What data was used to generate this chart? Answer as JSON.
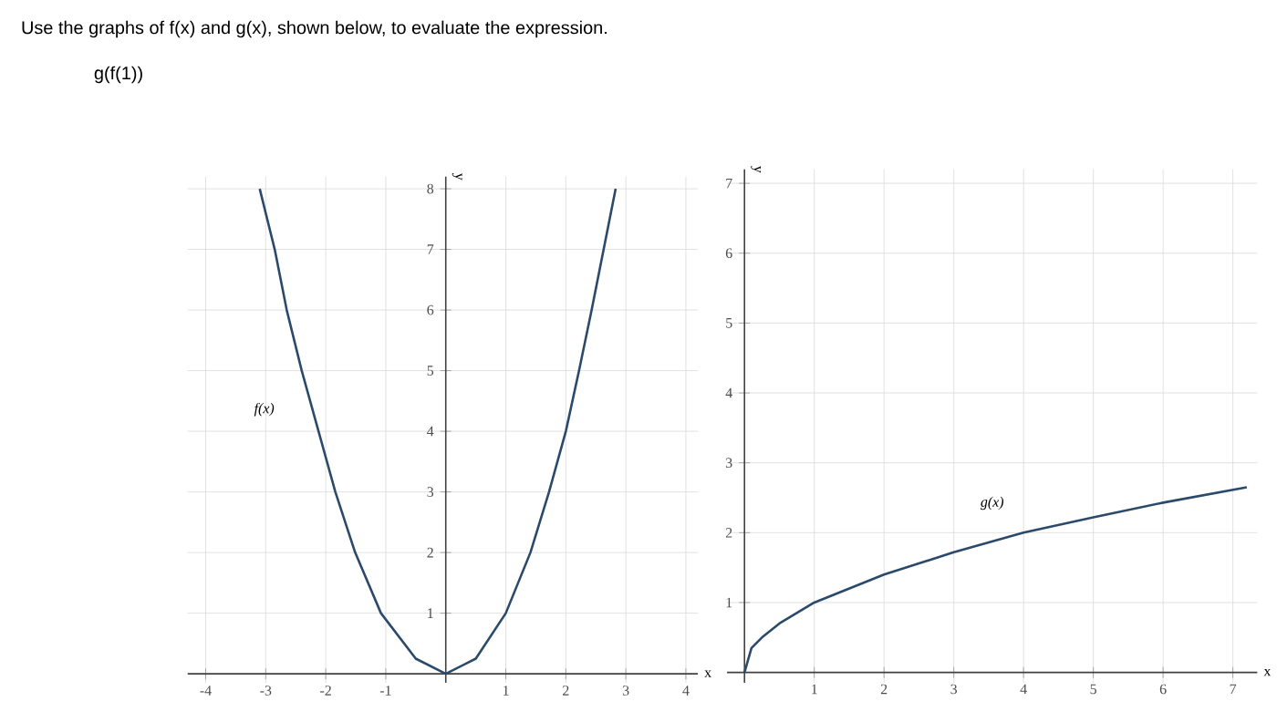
{
  "chart_data": [
    {
      "type": "line",
      "title": "Use the graphs of f(x) and g(x), shown below, to evaluate the expression.",
      "subtitle": "g(f(1))",
      "xlabel": "x",
      "ylabel": "y",
      "x": [
        -3.1,
        -2.85,
        -2.65,
        -2.4,
        -2.12,
        -1.84,
        -1.51,
        -1.08,
        -0.5,
        0,
        0.5,
        1.0,
        1.41,
        1.72,
        2.0,
        2.22,
        2.43,
        2.63,
        2.83
      ],
      "values": [
        8,
        7,
        6,
        5,
        4,
        3,
        2,
        1,
        0.25,
        0,
        0.25,
        1,
        2,
        3,
        4,
        5,
        6,
        7,
        8
      ],
      "color": "#2b4a6b",
      "line_style": "solid",
      "xlim": [
        -4.3,
        4.2
      ],
      "ylim": [
        -0.15,
        8.2
      ],
      "xticks": [
        -4,
        -3,
        -2,
        -1,
        1,
        2,
        3,
        4
      ],
      "yticks": [
        1,
        2,
        3,
        4,
        5,
        6,
        7,
        8
      ],
      "grid": true,
      "annotations": [
        "f(x)"
      ]
    },
    {
      "type": "line",
      "xlabel": "x",
      "ylabel": "y",
      "x": [
        0,
        0.1,
        0.25,
        0.5,
        1,
        2,
        3,
        4,
        5,
        6,
        7.2
      ],
      "values": [
        0,
        0.35,
        0.5,
        0.7,
        1,
        1.4,
        1.72,
        2,
        2.22,
        2.43,
        2.65
      ],
      "color": "#2b4a6b",
      "line_style": "solid",
      "xlim": [
        -0.25,
        7.35
      ],
      "ylim": [
        -0.15,
        7.2
      ],
      "xticks": [
        1,
        2,
        3,
        4,
        5,
        6,
        7
      ],
      "yticks": [
        1,
        2,
        3,
        4,
        5,
        6,
        7
      ],
      "grid": true,
      "annotations": [
        "g(x)"
      ]
    }
  ]
}
